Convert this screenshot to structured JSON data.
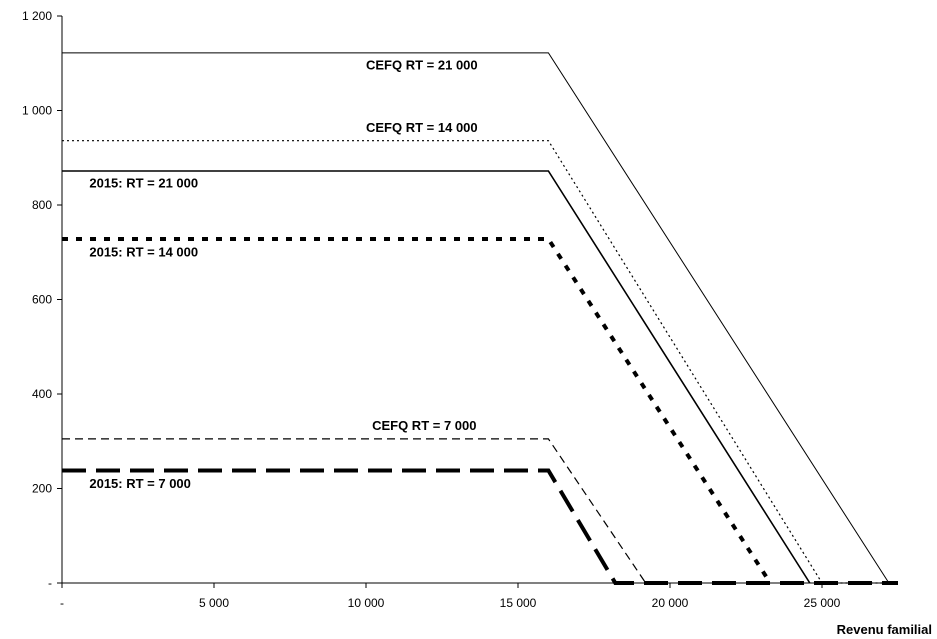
{
  "chart_data": {
    "type": "line",
    "title": "",
    "xlabel": "Revenu familial",
    "ylabel": "",
    "xlim": [
      0,
      27500
    ],
    "ylim": [
      0,
      1200
    ],
    "x_ticks": [
      0,
      5000,
      10000,
      15000,
      20000,
      25000
    ],
    "x_tick_labels": [
      "-",
      "5 000",
      "10 000",
      "15 000",
      "20 000",
      "25 000"
    ],
    "y_ticks": [
      0,
      200,
      400,
      600,
      800,
      1000,
      1200
    ],
    "y_tick_labels": [
      "-",
      "200",
      "400",
      "600",
      "800",
      "1 000",
      "1 200"
    ],
    "grid": false,
    "series": [
      {
        "name": "CEFQ RT =  21 000",
        "style": "solid-thin",
        "x": [
          0,
          16000,
          27200
        ],
        "y": [
          1122,
          1122,
          0
        ]
      },
      {
        "name": "CEFQ RT =  14 000",
        "style": "dotted-thin",
        "x": [
          0,
          16000,
          25000,
          27500
        ],
        "y": [
          936,
          936,
          0,
          0
        ]
      },
      {
        "name": "2015: RT =   21 000",
        "style": "solid-medium",
        "x": [
          0,
          16000,
          24600
        ],
        "y": [
          872,
          872,
          0
        ]
      },
      {
        "name": "2015: RT =   14 000",
        "style": "dotted-thick",
        "x": [
          0,
          16000,
          23300
        ],
        "y": [
          728,
          728,
          0
        ]
      },
      {
        "name": "CEFQ RT =  7 000",
        "style": "dashed-thin",
        "x": [
          0,
          16000,
          19200
        ],
        "y": [
          305,
          305,
          0
        ]
      },
      {
        "name": "2015: RT =   7 000",
        "style": "dashed-thick",
        "x": [
          0,
          16000,
          18200,
          27500
        ],
        "y": [
          238,
          238,
          0,
          0
        ]
      }
    ],
    "annotations": [
      {
        "text": "CEFQ RT =  21 000",
        "x": 10000,
        "y": 1095
      },
      {
        "text": "CEFQ RT =  14 000",
        "x": 10000,
        "y": 963
      },
      {
        "text": "2015: RT =   21 000",
        "x": 900,
        "y": 845
      },
      {
        "text": "2015: RT =   14 000",
        "x": 900,
        "y": 700
      },
      {
        "text": "CEFQ RT =  7 000",
        "x": 10200,
        "y": 332
      },
      {
        "text": "2015: RT =   7 000",
        "x": 900,
        "y": 210
      }
    ]
  }
}
